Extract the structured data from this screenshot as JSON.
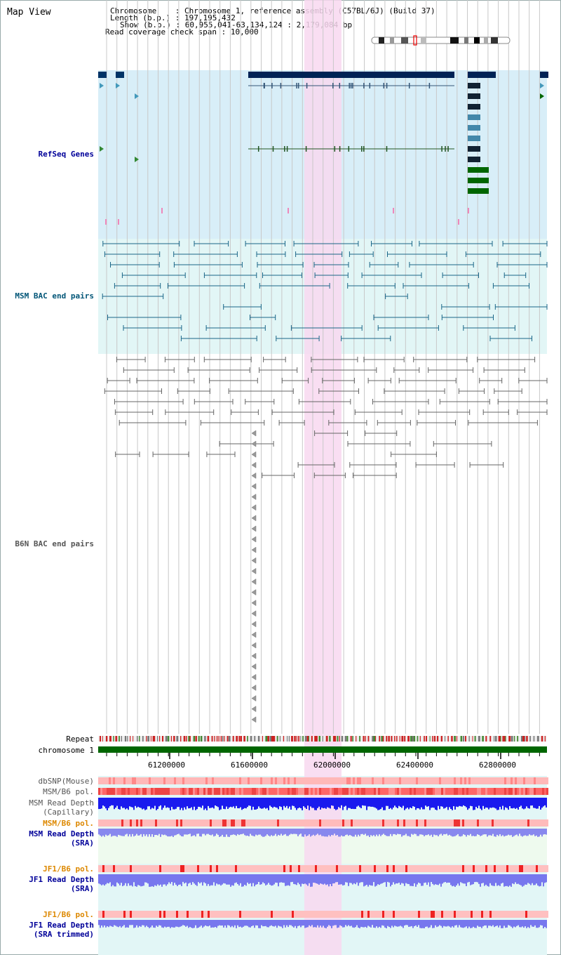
{
  "page": {
    "title": "Map View"
  },
  "header": {
    "chromosome_label": "Chromosome",
    "chromosome_value": "Chromosome 1, reference assembly (C57BL/6J) (Build 37)",
    "length_label": "Length (b.p.)",
    "length_value": "197,195,432",
    "show_label": "Show (b.p.)",
    "show_value": "60,955,041-63,134,124 : 2,179,084 bp",
    "coverage_label": "Read coverage check span",
    "coverage_value": "10,000"
  },
  "tracks": {
    "refseq": "RefSeq Genes",
    "msm_bac": "MSM BAC end pairs",
    "b6n_bac": "B6N BAC end pairs",
    "repeat": "Repeat",
    "chrom": "chromosome 1",
    "dbsnp": "dbSNP(Mouse)",
    "msm_pol1": "MSM/B6 pol.",
    "msm_depth_cap_1": "MSM Read Depth",
    "msm_depth_cap_2": "(Capillary)",
    "msm_pol2": "MSM/B6 pol.",
    "msm_depth_sra_1": "MSM Read Depth",
    "msm_depth_sra_2": "(SRA)",
    "jf1_pol1": "JF1/B6 pol.",
    "jf1_depth_1": "JF1 Read Depth",
    "jf1_depth_2": "(SRA)",
    "jf1_pol2": "JF1/B6 pol.",
    "jf1_trim_1": "JF1 Read Depth",
    "jf1_trim_2": "(SRA trimmed)"
  },
  "axis": {
    "ticks": [
      "61200000",
      "61600000",
      "62000000",
      "62400000",
      "62800000"
    ]
  },
  "colors": {
    "refseq_bg": "#d8eef8",
    "msm_bg": "#e2f6f6",
    "highlight": "#f8d8f0",
    "chrom_green": "#006600",
    "label_blue": "#000099",
    "label_teal": "#005577",
    "label_orange": "#dd8800",
    "label_gray": "#555555"
  }
}
